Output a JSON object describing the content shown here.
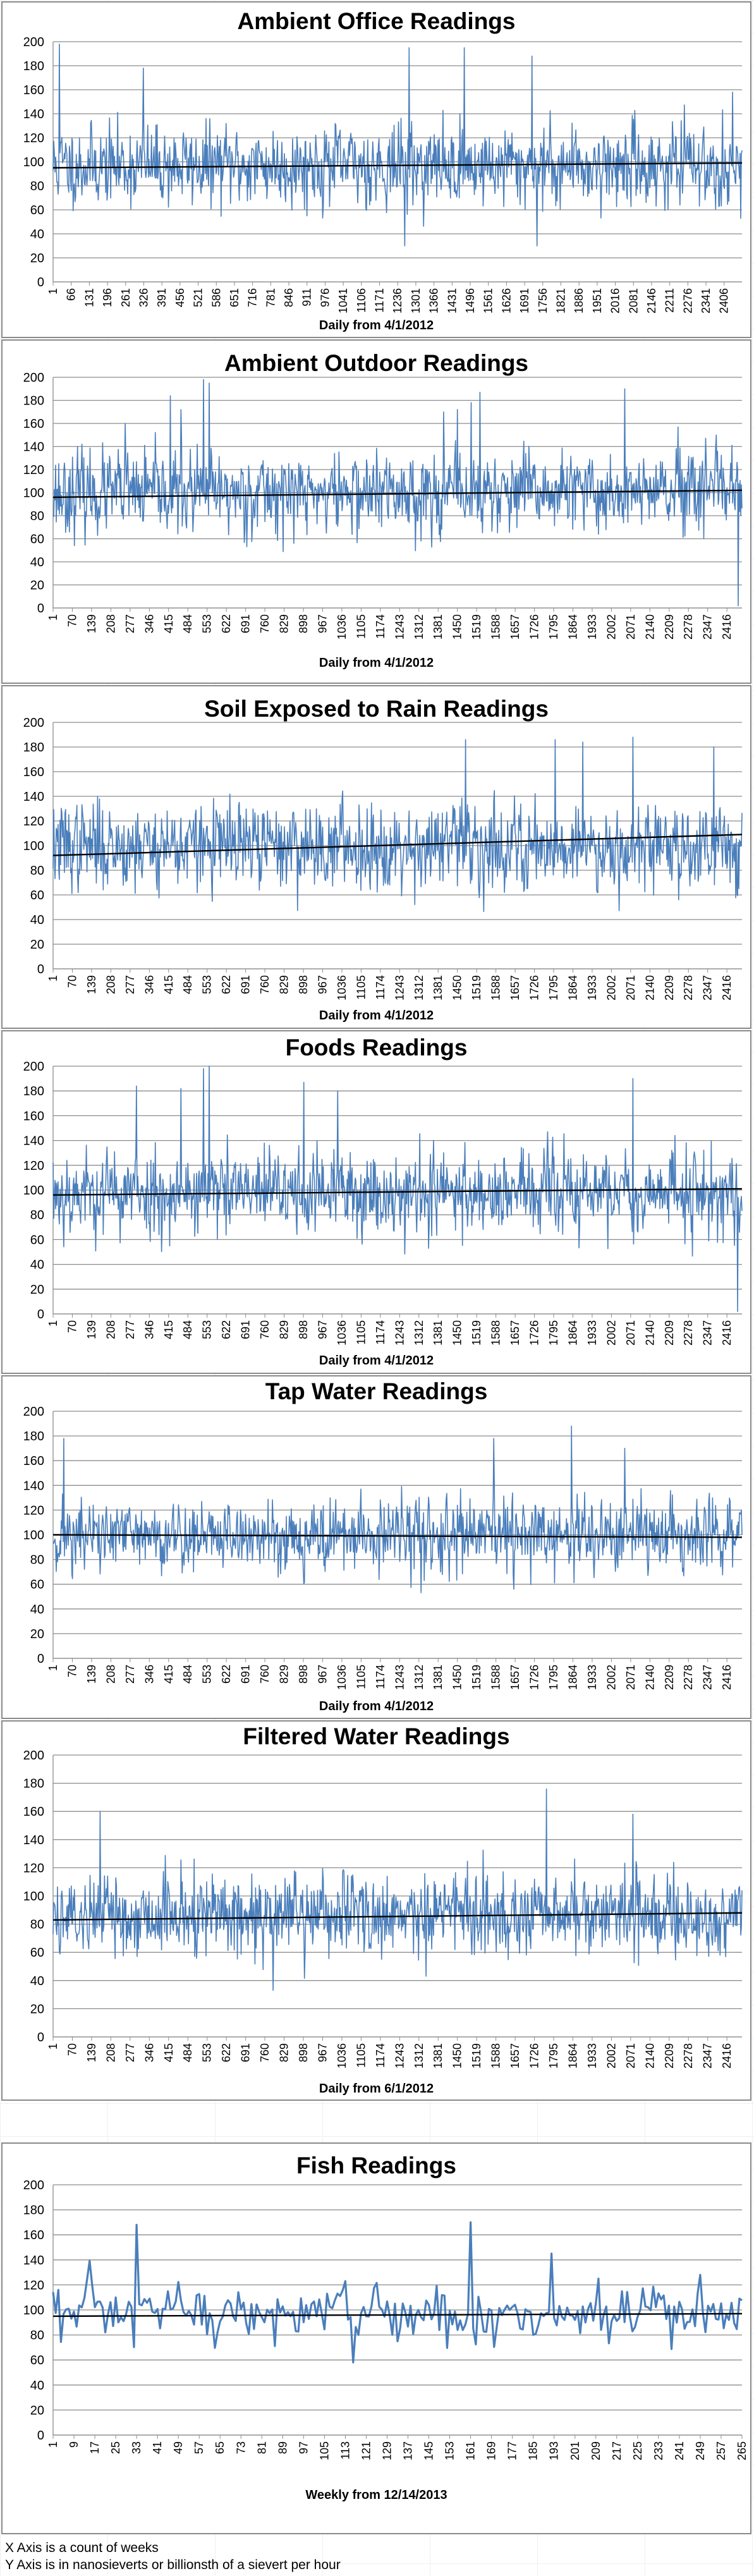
{
  "chart_data": [
    {
      "type": "line",
      "title": "Ambient Office Readings",
      "xlabel": "Daily from 4/1/2012",
      "ylabel": "",
      "ylim": [
        0,
        200
      ],
      "yticks": [
        0,
        20,
        40,
        60,
        80,
        100,
        120,
        140,
        160,
        180,
        200
      ],
      "xlim": [
        1,
        2470
      ],
      "xticks": [
        1,
        66,
        131,
        196,
        261,
        326,
        391,
        456,
        521,
        586,
        651,
        716,
        781,
        846,
        911,
        976,
        1041,
        1106,
        1171,
        1236,
        1301,
        1366,
        1431,
        1496,
        1561,
        1626,
        1691,
        1756,
        1821,
        1886,
        1951,
        2016,
        2081,
        2146,
        2211,
        2276,
        2341,
        2406
      ],
      "color": "#4a7ebb",
      "trendline_color": "#000000",
      "series": [
        {
          "mean": 97,
          "spread": 19,
          "seed": 11,
          "trend": [
            95,
            99
          ],
          "peaks": [
            [
              24,
              198
            ],
            [
              325,
              178
            ],
            [
              1261,
              30
            ],
            [
              1276,
              195
            ],
            [
              1475,
              195
            ],
            [
              1718,
              188
            ],
            [
              1735,
              30
            ],
            [
              2436,
              158
            ]
          ]
        }
      ]
    },
    {
      "type": "line",
      "title": "Ambient Outdoor Readings",
      "xlabel": "Daily from 4/1/2012",
      "ylabel": "",
      "ylim": [
        0,
        200
      ],
      "yticks": [
        0,
        20,
        40,
        60,
        80,
        100,
        120,
        140,
        160,
        180,
        200
      ],
      "xlim": [
        1,
        2470
      ],
      "xticks": [
        1,
        70,
        139,
        208,
        277,
        346,
        415,
        484,
        553,
        622,
        691,
        760,
        829,
        898,
        967,
        1036,
        1105,
        1174,
        1243,
        1312,
        1381,
        1450,
        1519,
        1588,
        1657,
        1726,
        1795,
        1864,
        1933,
        2002,
        2071,
        2140,
        2209,
        2278,
        2347,
        2416
      ],
      "color": "#4a7ebb",
      "trendline_color": "#000000",
      "series": [
        {
          "mean": 100,
          "spread": 20,
          "seed": 23,
          "trend": [
            96,
            102
          ],
          "peaks": [
            [
              260,
              160
            ],
            [
              420,
              184
            ],
            [
              460,
              172
            ],
            [
              540,
              198
            ],
            [
              560,
              195
            ],
            [
              1400,
              170
            ],
            [
              1450,
              172
            ],
            [
              1500,
              178
            ],
            [
              1530,
              187
            ],
            [
              2050,
              190
            ],
            [
              2457,
              2
            ]
          ]
        }
      ]
    },
    {
      "type": "line",
      "title": "Soil Exposed to Rain Readings",
      "xlabel": "Daily from 4/1/2012",
      "ylabel": "",
      "ylim": [
        0,
        200
      ],
      "yticks": [
        0,
        20,
        40,
        60,
        80,
        100,
        120,
        140,
        160,
        180,
        200
      ],
      "xlim": [
        1,
        2470
      ],
      "xticks": [
        1,
        70,
        139,
        208,
        277,
        346,
        415,
        484,
        553,
        622,
        691,
        760,
        829,
        898,
        967,
        1036,
        1105,
        1174,
        1243,
        1312,
        1381,
        1450,
        1519,
        1588,
        1657,
        1726,
        1795,
        1864,
        1933,
        2002,
        2071,
        2140,
        2209,
        2278,
        2347,
        2416
      ],
      "color": "#4a7ebb",
      "trendline_color": "#000000",
      "series": [
        {
          "mean": 100,
          "spread": 20,
          "seed": 37,
          "trend": [
            92,
            109
          ],
          "peaks": [
            [
              1480,
              186
            ],
            [
              1800,
              186
            ],
            [
              1900,
              184
            ],
            [
              2080,
              188
            ],
            [
              2370,
              180
            ]
          ]
        }
      ]
    },
    {
      "type": "line",
      "title": "Foods Readings",
      "xlabel": "Daily from 4/1/2012",
      "ylabel": "",
      "ylim": [
        0,
        200
      ],
      "yticks": [
        0,
        20,
        40,
        60,
        80,
        100,
        120,
        140,
        160,
        180,
        200
      ],
      "xlim": [
        1,
        2470
      ],
      "xticks": [
        1,
        70,
        139,
        208,
        277,
        346,
        415,
        484,
        553,
        622,
        691,
        760,
        829,
        898,
        967,
        1036,
        1105,
        1174,
        1243,
        1312,
        1381,
        1450,
        1519,
        1588,
        1657,
        1726,
        1795,
        1864,
        1933,
        2002,
        2071,
        2140,
        2209,
        2278,
        2347,
        2416
      ],
      "color": "#4a7ebb",
      "trendline_color": "#000000",
      "series": [
        {
          "mean": 98,
          "spread": 20,
          "seed": 53,
          "trend": [
            96,
            101
          ],
          "peaks": [
            [
              300,
              184
            ],
            [
              460,
              182
            ],
            [
              540,
              198
            ],
            [
              560,
              200
            ],
            [
              900,
              187
            ],
            [
              1020,
              180
            ],
            [
              2080,
              190
            ],
            [
              2455,
              2
            ]
          ]
        }
      ]
    },
    {
      "type": "line",
      "title": "Tap Water Readings",
      "xlabel": "Daily from 4/1/2012",
      "ylabel": "",
      "ylim": [
        0,
        200
      ],
      "yticks": [
        0,
        20,
        40,
        60,
        80,
        100,
        120,
        140,
        160,
        180,
        200
      ],
      "xlim": [
        1,
        2470
      ],
      "xticks": [
        1,
        70,
        139,
        208,
        277,
        346,
        415,
        484,
        553,
        622,
        691,
        760,
        829,
        898,
        967,
        1036,
        1105,
        1174,
        1243,
        1312,
        1381,
        1450,
        1519,
        1588,
        1657,
        1726,
        1795,
        1864,
        1933,
        2002,
        2071,
        2140,
        2209,
        2278,
        2347,
        2416
      ],
      "color": "#4a7ebb",
      "trendline_color": "#000000",
      "series": [
        {
          "mean": 99,
          "spread": 17,
          "seed": 71,
          "trend": [
            100,
            98
          ],
          "peaks": [
            [
              40,
              178
            ],
            [
              1580,
              178
            ],
            [
              1860,
              188
            ],
            [
              2050,
              170
            ]
          ]
        }
      ]
    },
    {
      "type": "line",
      "title": "Filtered Water Readings",
      "xlabel": "Daily from 6/1/2012",
      "ylabel": "",
      "ylim": [
        0,
        200
      ],
      "yticks": [
        0,
        20,
        40,
        60,
        80,
        100,
        120,
        140,
        160,
        180,
        200
      ],
      "xlim": [
        1,
        2470
      ],
      "xticks": [
        1,
        70,
        139,
        208,
        277,
        346,
        415,
        484,
        553,
        622,
        691,
        760,
        829,
        898,
        967,
        1036,
        1105,
        1174,
        1243,
        1312,
        1381,
        1450,
        1519,
        1588,
        1657,
        1726,
        1795,
        1864,
        1933,
        2002,
        2071,
        2140,
        2209,
        2278,
        2347,
        2416
      ],
      "color": "#4a7ebb",
      "trendline_color": "#000000",
      "series": [
        {
          "mean": 87,
          "spread": 17,
          "seed": 89,
          "trend": [
            83,
            88
          ],
          "peaks": [
            [
              170,
              160
            ],
            [
              1770,
              176
            ],
            [
              2080,
              158
            ]
          ]
        }
      ]
    },
    {
      "type": "line",
      "title": "Fish Readings",
      "xlabel": "Weekly from 12/14/2013",
      "ylabel": "",
      "ylim": [
        0,
        200
      ],
      "yticks": [
        0,
        20,
        40,
        60,
        80,
        100,
        120,
        140,
        160,
        180,
        200
      ],
      "xlim": [
        1,
        265
      ],
      "xticks": [
        1,
        9,
        17,
        25,
        33,
        41,
        49,
        57,
        65,
        73,
        81,
        89,
        97,
        105,
        113,
        121,
        129,
        137,
        145,
        153,
        161,
        169,
        177,
        185,
        193,
        201,
        209,
        217,
        225,
        233,
        241,
        249,
        257,
        265
      ],
      "color": "#4a7ebb",
      "trendline_color": "#000000",
      "series": [
        {
          "mean": 96,
          "spread": 15,
          "seed": 97,
          "trend": [
            95,
            97
          ],
          "peaks": [
            [
              33,
              168
            ],
            [
              161,
              170
            ],
            [
              192,
              145
            ]
          ]
        }
      ]
    }
  ],
  "footnotes": [
    "X Axis is a count of weeks",
    "Y Axis is in nanosieverts or billionsth of a sievert per hour"
  ]
}
